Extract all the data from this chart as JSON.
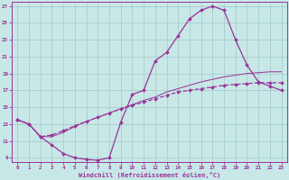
{
  "xlabel": "Windchill (Refroidissement éolien,°C)",
  "xlim": [
    -0.5,
    23.5
  ],
  "ylim": [
    8.5,
    27.5
  ],
  "xticks": [
    0,
    1,
    2,
    3,
    4,
    5,
    6,
    7,
    8,
    9,
    10,
    11,
    12,
    13,
    14,
    15,
    16,
    17,
    18,
    19,
    20,
    21,
    22,
    23
  ],
  "yticks": [
    9,
    11,
    13,
    15,
    17,
    19,
    21,
    23,
    25,
    27
  ],
  "bg_color": "#c8e8e8",
  "grid_color": "#a0c8c8",
  "line_color": "#993399",
  "s1_x": [
    0,
    1,
    2,
    3,
    4,
    5,
    6,
    7,
    8,
    9,
    10,
    11,
    12,
    13,
    14,
    15,
    16,
    17,
    18,
    19,
    20,
    21,
    22,
    23
  ],
  "s1_y": [
    13.5,
    13.0,
    11.5,
    10.5,
    9.5,
    9.0,
    8.8,
    8.7,
    9.0,
    13.2,
    16.5,
    17.0,
    20.5,
    21.5,
    23.5,
    25.5,
    26.5,
    27.0,
    26.5,
    23.0,
    20.0,
    18.0,
    17.5,
    17.0
  ],
  "s2_x": [
    0,
    1,
    2,
    3,
    4,
    5,
    6,
    7,
    8,
    9,
    10,
    11,
    12,
    13,
    14,
    15,
    16,
    17,
    18,
    19,
    20,
    21,
    22,
    23
  ],
  "s2_y": [
    13.5,
    13.0,
    11.5,
    11.7,
    12.2,
    12.8,
    13.3,
    13.8,
    14.3,
    14.8,
    15.2,
    15.6,
    16.0,
    16.4,
    16.8,
    17.0,
    17.2,
    17.4,
    17.6,
    17.7,
    17.8,
    17.9,
    17.9,
    17.9
  ],
  "s3_x": [
    0,
    1,
    2,
    3,
    4,
    5,
    6,
    7,
    8,
    9,
    10,
    11,
    12,
    13,
    14,
    15,
    16,
    17,
    18,
    19,
    20,
    21,
    22,
    23
  ],
  "s3_y": [
    13.5,
    13.0,
    11.5,
    11.5,
    12.0,
    12.7,
    13.3,
    13.8,
    14.3,
    14.8,
    15.3,
    15.8,
    16.2,
    16.8,
    17.2,
    17.6,
    18.0,
    18.3,
    18.6,
    18.8,
    19.0,
    19.1,
    19.2,
    19.2
  ]
}
